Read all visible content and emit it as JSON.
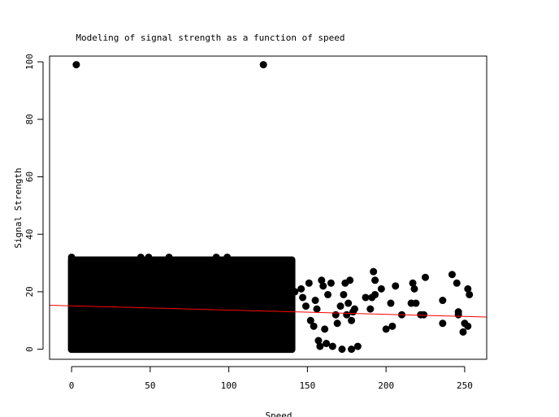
{
  "chart_data": {
    "type": "scatter",
    "title": "Modeling of signal strength as a function of speed",
    "xlabel": "Speed",
    "ylabel": "Signal Strength",
    "xlim": [
      -14,
      264
    ],
    "ylim": [
      -3.5,
      102
    ],
    "x_ticks": [
      0,
      50,
      100,
      150,
      200,
      250
    ],
    "y_ticks": [
      0,
      20,
      40,
      60,
      80,
      100
    ],
    "dense_region": {
      "description": "solid block of overlapping points",
      "x_range": [
        0,
        140
      ],
      "y_range": [
        0,
        31
      ]
    },
    "outliers": [
      {
        "x": 3,
        "y": 99
      },
      {
        "x": 122,
        "y": 99
      },
      {
        "x": 0,
        "y": 32
      },
      {
        "x": 44,
        "y": 32
      },
      {
        "x": 49,
        "y": 32
      },
      {
        "x": 62,
        "y": 32
      },
      {
        "x": 92,
        "y": 32
      },
      {
        "x": 99,
        "y": 32
      },
      {
        "x": 127,
        "y": 31
      },
      {
        "x": 131,
        "y": 26
      },
      {
        "x": 134,
        "y": 24
      },
      {
        "x": 137,
        "y": 22
      },
      {
        "x": 142,
        "y": 20
      },
      {
        "x": 146,
        "y": 21
      },
      {
        "x": 147,
        "y": 18
      },
      {
        "x": 149,
        "y": 15
      },
      {
        "x": 151,
        "y": 23
      },
      {
        "x": 152,
        "y": 10
      },
      {
        "x": 154,
        "y": 8
      },
      {
        "x": 155,
        "y": 17
      },
      {
        "x": 156,
        "y": 14
      },
      {
        "x": 157,
        "y": 3
      },
      {
        "x": 158,
        "y": 1
      },
      {
        "x": 159,
        "y": 24
      },
      {
        "x": 160,
        "y": 22
      },
      {
        "x": 161,
        "y": 7
      },
      {
        "x": 162,
        "y": 2
      },
      {
        "x": 163,
        "y": 19
      },
      {
        "x": 165,
        "y": 23
      },
      {
        "x": 166,
        "y": 1
      },
      {
        "x": 168,
        "y": 12
      },
      {
        "x": 169,
        "y": 9
      },
      {
        "x": 171,
        "y": 15
      },
      {
        "x": 172,
        "y": 0
      },
      {
        "x": 173,
        "y": 19
      },
      {
        "x": 174,
        "y": 23
      },
      {
        "x": 175,
        "y": 12
      },
      {
        "x": 176,
        "y": 16
      },
      {
        "x": 177,
        "y": 24
      },
      {
        "x": 178,
        "y": 10
      },
      {
        "x": 178,
        "y": 0
      },
      {
        "x": 179,
        "y": 13
      },
      {
        "x": 180,
        "y": 14
      },
      {
        "x": 182,
        "y": 1
      },
      {
        "x": 187,
        "y": 18
      },
      {
        "x": 190,
        "y": 14
      },
      {
        "x": 191,
        "y": 18
      },
      {
        "x": 192,
        "y": 27
      },
      {
        "x": 193,
        "y": 24
      },
      {
        "x": 193,
        "y": 19
      },
      {
        "x": 197,
        "y": 21
      },
      {
        "x": 200,
        "y": 7
      },
      {
        "x": 203,
        "y": 16
      },
      {
        "x": 204,
        "y": 8
      },
      {
        "x": 206,
        "y": 22
      },
      {
        "x": 210,
        "y": 12
      },
      {
        "x": 216,
        "y": 16
      },
      {
        "x": 217,
        "y": 23
      },
      {
        "x": 218,
        "y": 21
      },
      {
        "x": 219,
        "y": 16
      },
      {
        "x": 222,
        "y": 12
      },
      {
        "x": 224,
        "y": 12
      },
      {
        "x": 225,
        "y": 25
      },
      {
        "x": 236,
        "y": 17
      },
      {
        "x": 236,
        "y": 9
      },
      {
        "x": 242,
        "y": 26
      },
      {
        "x": 245,
        "y": 23
      },
      {
        "x": 246,
        "y": 13
      },
      {
        "x": 246,
        "y": 12
      },
      {
        "x": 249,
        "y": 6
      },
      {
        "x": 250,
        "y": 9
      },
      {
        "x": 252,
        "y": 21
      },
      {
        "x": 252,
        "y": 8
      },
      {
        "x": 253,
        "y": 19
      }
    ],
    "regression_line": {
      "color": "#ff0000",
      "points": [
        [
          -14,
          15.3
        ],
        [
          264,
          11.2
        ]
      ]
    },
    "point_color": "#000000"
  }
}
